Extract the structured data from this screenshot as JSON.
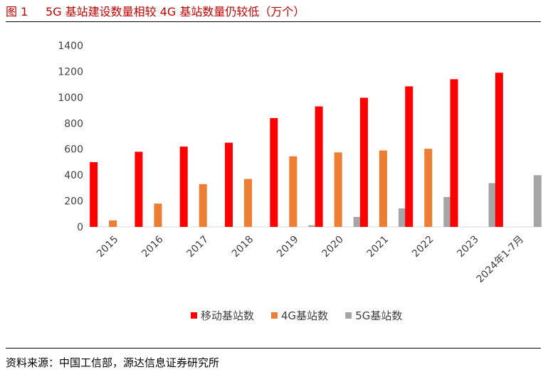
{
  "figure": {
    "number": "图 1",
    "title": "5G 基站建设数量相较 4G 基站数量仍较低（万个）"
  },
  "source": "资料来源：中国工信部，源达信息证券研究所",
  "colors": {
    "title": "#c00000",
    "series_5g_sites_moving": "#ff0000",
    "series_4g": "#ed7d31",
    "series_5g": "#a5a5a5"
  },
  "chart_data": {
    "type": "bar",
    "title": "",
    "xlabel": "",
    "ylabel": "",
    "ylim": [
      0,
      1400
    ],
    "yticks": [
      0,
      200,
      400,
      600,
      800,
      1000,
      1200,
      1400
    ],
    "grid": false,
    "legend_position": "bottom",
    "categories": [
      "2015",
      "2016",
      "2017",
      "2018",
      "2019",
      "2020",
      "2021",
      "2022",
      "2023",
      "2024年1-7月"
    ],
    "series": [
      {
        "name": "移动基站数",
        "color": "#ff0000",
        "values": [
          500,
          580,
          620,
          650,
          840,
          930,
          997,
          1085,
          1140,
          1190
        ]
      },
      {
        "name": "4G基站数",
        "color": "#ed7d31",
        "values": [
          50,
          180,
          330,
          370,
          545,
          575,
          590,
          603,
          null,
          null
        ]
      },
      {
        "name": "5G基站数",
        "color": "#a5a5a5",
        "values": [
          null,
          null,
          null,
          null,
          13,
          77,
          143,
          231,
          338,
          399
        ]
      }
    ]
  }
}
